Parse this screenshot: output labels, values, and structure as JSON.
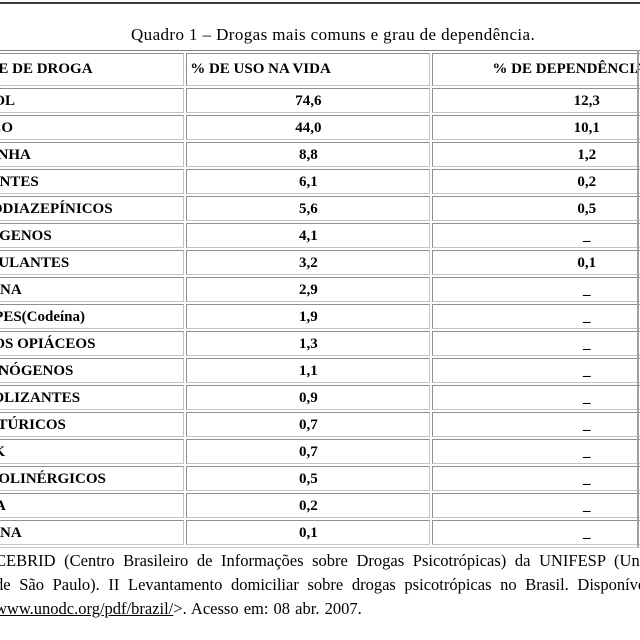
{
  "caption": "Quadro 1 – Drogas mais comuns e grau de dependência.",
  "table": {
    "headers": [
      "CLASSE DE DROGA",
      "% DE USO NA VIDA",
      "% DE DEPENDÊNCIA"
    ],
    "rows": [
      {
        "droga": "ÁLCOOL",
        "uso_na_vida": "74,6",
        "dependencia": "12,3"
      },
      {
        "droga": "TABACO",
        "uso_na_vida": "44,0",
        "dependencia": "10,1"
      },
      {
        "droga": "MACONHA",
        "uso_na_vida": "8,8",
        "dependencia": "1,2"
      },
      {
        "droga": "SOLVENTES",
        "uso_na_vida": "6,1",
        "dependencia": "0,2"
      },
      {
        "droga": "BENZODIAZEPÍNICOS",
        "uso_na_vida": "5,6",
        "dependencia": "0,5"
      },
      {
        "droga": "OREXÍGENOS",
        "uso_na_vida": "4,1",
        "dependencia": "_"
      },
      {
        "droga": "ESTIMULANTES",
        "uso_na_vida": "3,2",
        "dependencia": "0,1"
      },
      {
        "droga": "COCAÍNA",
        "uso_na_vida": "2,9",
        "dependencia": "_"
      },
      {
        "droga": "XAROPES(Codeína)",
        "uso_na_vida": "1,9",
        "dependencia": "_"
      },
      {
        "droga": "OUTROS OPIÁCEOS",
        "uso_na_vida": "1,3",
        "dependencia": "_"
      },
      {
        "droga": "ALUCINÓGENOS",
        "uso_na_vida": "1,1",
        "dependencia": "_"
      },
      {
        "droga": "ANABOLIZANTES",
        "uso_na_vida": "0,9",
        "dependencia": "_"
      },
      {
        "droga": "BARBITÚRICOS",
        "uso_na_vida": "0,7",
        "dependencia": "_"
      },
      {
        "droga": "CRACK",
        "uso_na_vida": "0,7",
        "dependencia": "_"
      },
      {
        "droga": "ANTICOLINÉRGICOS",
        "uso_na_vida": "0,5",
        "dependencia": "_"
      },
      {
        "droga": "MERLA",
        "uso_na_vida": "0,2",
        "dependencia": "_"
      },
      {
        "droga": "HEROÍNA",
        "uso_na_vida": "0,1",
        "dependencia": "_"
      }
    ]
  },
  "footer": {
    "line1": "CEBRID (Centro Brasileiro de Informações sobre Drogas Psicotrópicas) da UNIFESP (Universidade Federal",
    "line2": "de São Paulo). II Levantamento domiciliar sobre drogas psicotrópicas no Brasil. Disponível em: <",
    "line3_url": "www.unodc.org/pdf/brazil/",
    "line3_rest": ">.  Acesso em: 08 abr. 2007."
  },
  "colors": {
    "text": "#000000",
    "table_border": "#8f8f8f",
    "top_divider": "#3b3b3b",
    "background": "#ffffff"
  }
}
